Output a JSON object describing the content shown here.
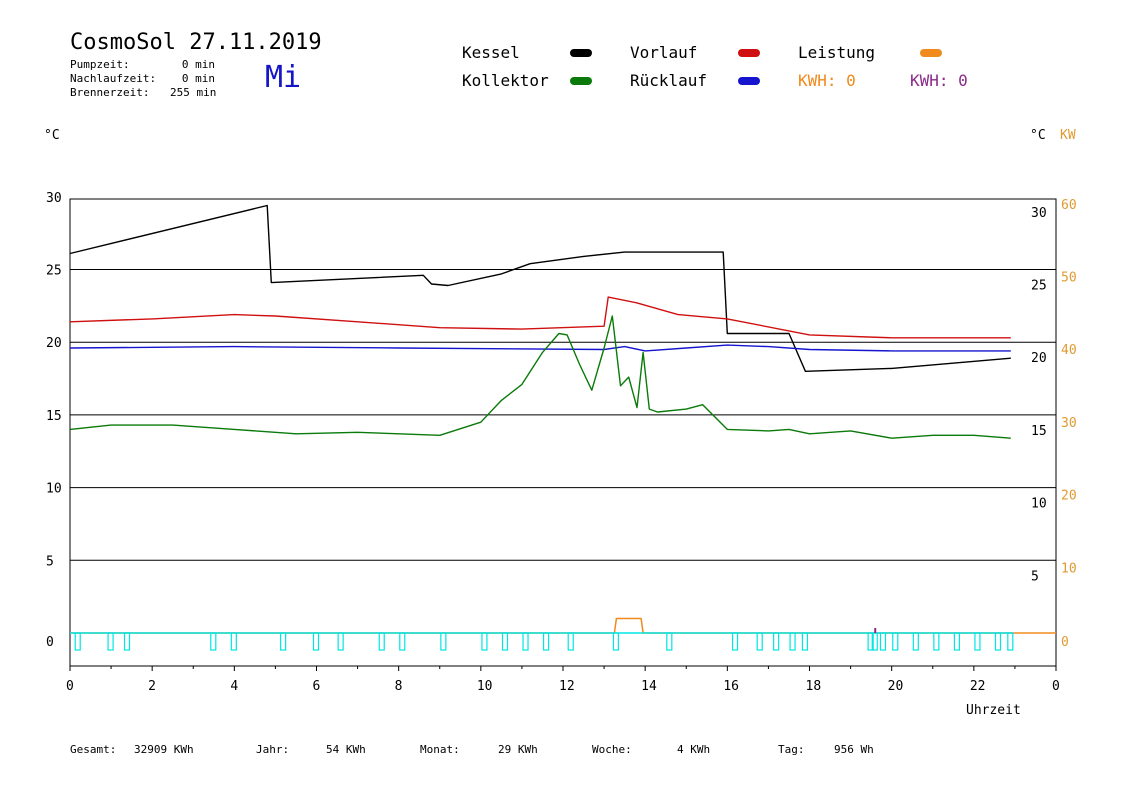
{
  "header": {
    "title": "CosmoSol 27.11.2019",
    "weekday": "Mi",
    "info": [
      {
        "label": "Pumpzeit:",
        "value": "0 min"
      },
      {
        "label": "Nachlaufzeit:",
        "value": "0 min"
      },
      {
        "label": "Brennerzeit:",
        "value": "255 min"
      }
    ]
  },
  "legend": {
    "kessel": "Kessel",
    "kollektor": "Kollektor",
    "vorlauf": "Vorlauf",
    "ruecklauf": "Rücklauf",
    "leistung": "Leistung",
    "kwh_orange": "KWH: 0",
    "kwh_purple": "KWH: 0"
  },
  "colors": {
    "kessel": "#000000",
    "kollektor": "#0a7a0a",
    "vorlauf": "#d01010",
    "ruecklauf": "#1515d0",
    "leistung": "#f08a1c",
    "purple": "#8a2a8a",
    "pump": "#00e5e5",
    "axis_orange": "#e09a30"
  },
  "axis_units": {
    "left": "°C",
    "right": "°C",
    "right2": "KW"
  },
  "chart_data": {
    "type": "line",
    "xlabel": "Uhrzeit",
    "x_ticks": [
      "0",
      "2",
      "4",
      "6",
      "8",
      "10",
      "12",
      "14",
      "16",
      "18",
      "20",
      "22",
      "0"
    ],
    "xlim": [
      0,
      24
    ],
    "ylim": [
      0,
      30
    ],
    "y_left_ticks": [
      "0",
      "5",
      "10",
      "15",
      "20",
      "25",
      "30"
    ],
    "y_right_ticks": [
      "5",
      "10",
      "15",
      "20",
      "25",
      "30"
    ],
    "y_kw_ticks": [
      "0",
      "10",
      "20",
      "30",
      "40",
      "50",
      "60"
    ],
    "grid": true,
    "series": [
      {
        "name": "Kessel",
        "x": [
          0,
          4.8,
          4.9,
          8.6,
          8.8,
          9.2,
          10.5,
          11.2,
          12.5,
          13.5,
          15.9,
          16.0,
          17.5,
          17.9,
          20,
          22.9
        ],
        "y": [
          26.1,
          29.4,
          24.1,
          24.6,
          24.0,
          23.9,
          24.7,
          25.4,
          25.9,
          26.2,
          26.2,
          20.6,
          20.6,
          18.0,
          18.2,
          18.9
        ]
      },
      {
        "name": "Vorlauf",
        "x": [
          0,
          2,
          4,
          5,
          7,
          9,
          11,
          13,
          13.1,
          13.8,
          14.8,
          16,
          18,
          20,
          22.9
        ],
        "y": [
          21.4,
          21.6,
          21.9,
          21.8,
          21.4,
          21.0,
          20.9,
          21.1,
          23.1,
          22.7,
          21.9,
          21.6,
          20.5,
          20.3,
          20.3
        ]
      },
      {
        "name": "Rücklauf",
        "x": [
          0,
          4,
          8,
          13,
          13.5,
          14,
          15,
          16,
          17,
          18,
          20,
          22.9
        ],
        "y": [
          19.6,
          19.7,
          19.6,
          19.5,
          19.7,
          19.4,
          19.6,
          19.8,
          19.7,
          19.5,
          19.4,
          19.4
        ]
      },
      {
        "name": "Kollektor",
        "x": [
          0,
          1,
          2.5,
          4,
          5.5,
          7,
          8,
          9,
          10,
          10.5,
          11,
          11.5,
          11.9,
          12.1,
          12.4,
          12.7,
          13.0,
          13.2,
          13.4,
          13.6,
          13.8,
          13.95,
          14.1,
          14.3,
          15,
          15.4,
          16,
          17,
          17.5,
          18,
          19,
          20,
          21,
          22,
          22.9
        ],
        "y": [
          14.0,
          14.3,
          14.3,
          14.0,
          13.7,
          13.8,
          13.7,
          13.6,
          14.5,
          16.0,
          17.1,
          19.3,
          20.6,
          20.5,
          18.5,
          16.7,
          19.6,
          21.8,
          17.0,
          17.6,
          15.5,
          19.3,
          15.4,
          15.2,
          15.4,
          15.7,
          14.0,
          13.9,
          14.0,
          13.7,
          13.9,
          13.4,
          13.6,
          13.6,
          13.4
        ]
      },
      {
        "name": "Leistung",
        "x": [
          0,
          13.1,
          13.25,
          13.3,
          13.9,
          13.95,
          24
        ],
        "y": [
          0,
          0,
          0,
          1.0,
          1.0,
          0,
          0
        ]
      },
      {
        "name": "Pumpe",
        "pulses": [
          0.2,
          1.0,
          1.4,
          3.5,
          4.0,
          5.2,
          6.0,
          6.6,
          7.6,
          8.1,
          9.1,
          10.1,
          10.6,
          11.1,
          11.6,
          12.2,
          13.3,
          14.6,
          16.2,
          16.8,
          17.2,
          17.6,
          17.9,
          19.5,
          19.6,
          19.8,
          20.1,
          20.6,
          21.1,
          21.6,
          22.1,
          22.6,
          22.9
        ]
      }
    ]
  },
  "footer": {
    "gesamt_label": "Gesamt:",
    "gesamt_value": "32909 KWh",
    "jahr_label": "Jahr:",
    "jahr_value": "54 KWh",
    "monat_label": "Monat:",
    "monat_value": "29 KWh",
    "woche_label": "Woche:",
    "woche_value": "4 KWh",
    "tag_label": "Tag:",
    "tag_value": "956 Wh"
  }
}
